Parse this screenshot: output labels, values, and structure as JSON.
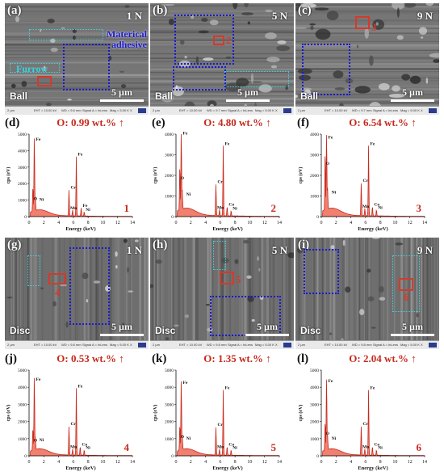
{
  "sem_panels": [
    {
      "id": "a",
      "label": "(a)",
      "load": "1 N",
      "sample": "Ball",
      "scale": "5 µm",
      "annotations": {
        "adhesive": "Materical adhesive",
        "furrow": "Furrow"
      },
      "spot": "",
      "infobar": [
        "2 µm",
        "EHT = 10.00 kV",
        "WD = 9.6 mm",
        "Signal A = InLens",
        "Mag = 5.00 K X"
      ]
    },
    {
      "id": "b",
      "label": "(b)",
      "load": "5 N",
      "sample": "Ball",
      "scale": "5 µm",
      "spot": "2",
      "infobar": [
        "2 µm",
        "EHT = 10.00 kV",
        "WD = 9.7 mm",
        "Signal A = InLens",
        "Mag = 5.00 K X"
      ]
    },
    {
      "id": "c",
      "label": "(c)",
      "load": "9 N",
      "sample": "Ball",
      "scale": "5 µm",
      "spot": "3",
      "infobar": [
        "2 µm",
        "EHT = 10.00 kV",
        "WD = 9.7 mm",
        "Signal A = InLens",
        "Mag = 5.00 K X"
      ]
    },
    {
      "id": "g",
      "label": "(g)",
      "load": "1 N",
      "sample": "Disc",
      "scale": "5 µm",
      "spot": "4",
      "infobar": [
        "2 µm",
        "EHT = 10.00 kV",
        "WD = 9.8 mm",
        "Signal A = InLens",
        "Mag = 5.00 K X"
      ]
    },
    {
      "id": "h",
      "label": "(h)",
      "load": "5 N",
      "sample": "Disc",
      "scale": "5 µm",
      "spot": "5",
      "infobar": [
        "2 µm",
        "EHT = 10.00 kV",
        "WD = 9.8 mm",
        "Signal A = InLens",
        "Mag = 5.00 K X"
      ]
    },
    {
      "id": "i",
      "label": "(i)",
      "load": "9 N",
      "sample": "Disc",
      "scale": "5 µm",
      "spot": "6",
      "infobar": [
        "2 µm",
        "EHT = 10.00 kV",
        "WD = 9.8 mm",
        "Signal A = InLens",
        "Mag = 5.00 K X"
      ]
    }
  ],
  "chart_data": [
    {
      "type": "line",
      "panel": "(d)",
      "title": "O: 0.99 wt.% ↑",
      "spectrum": "1",
      "xlabel": "Energy (keV)",
      "ylabel": "cps (eV)",
      "xlim": [
        0,
        14
      ],
      "ylim": [
        0,
        5000
      ],
      "xticks": [
        0,
        2,
        4,
        6,
        8,
        10,
        12,
        14
      ],
      "yticks": [
        0,
        1000,
        2000,
        3000,
        4000,
        5000
      ],
      "peaks": [
        {
          "label": "Fe",
          "x": 0.71,
          "y": 4500
        },
        {
          "label": "O",
          "x": 0.52,
          "y": 1500
        },
        {
          "label": "Ni",
          "x": 0.85,
          "y": 800
        },
        {
          "label": "Cr",
          "x": 5.41,
          "y": 1600
        },
        {
          "label": "Mn",
          "x": 5.9,
          "y": 350
        },
        {
          "label": "Fe",
          "x": 6.4,
          "y": 3600
        },
        {
          "label": "Fe",
          "x": 7.06,
          "y": 500
        },
        {
          "label": "Ni",
          "x": 7.47,
          "y": 250
        }
      ]
    },
    {
      "type": "line",
      "panel": "(e)",
      "title": "O: 4.80 wt.% ↑",
      "spectrum": "2",
      "xlabel": "Energy (keV)",
      "ylabel": "cps (eV)",
      "xlim": [
        0,
        14
      ],
      "ylim": [
        0,
        4000
      ],
      "xticks": [
        0,
        2,
        4,
        6,
        8,
        10,
        12,
        14
      ],
      "yticks": [
        0,
        1000,
        2000,
        3000,
        4000
      ],
      "peaks": [
        {
          "label": "Fe",
          "x": 0.71,
          "y": 3900
        },
        {
          "label": "O",
          "x": 0.52,
          "y": 2200
        },
        {
          "label": "Ni",
          "x": 0.85,
          "y": 900
        },
        {
          "label": "Cr",
          "x": 5.41,
          "y": 1550
        },
        {
          "label": "Mn",
          "x": 5.9,
          "y": 300
        },
        {
          "label": "Fe",
          "x": 6.4,
          "y": 3400
        },
        {
          "label": "Co",
          "x": 6.93,
          "y": 450
        },
        {
          "label": "Ni",
          "x": 7.47,
          "y": 250
        }
      ]
    },
    {
      "type": "line",
      "panel": "(f)",
      "title": "O: 6.54 wt.% ↑",
      "spectrum": "3",
      "xlabel": "Energy (keV)",
      "ylabel": "cps (eV)",
      "xlim": [
        0,
        14
      ],
      "ylim": [
        0,
        4000
      ],
      "xticks": [
        0,
        2,
        4,
        6,
        8,
        10,
        12,
        14
      ],
      "yticks": [
        0,
        1000,
        2000,
        3000,
        4000
      ],
      "peaks": [
        {
          "label": "Fe",
          "x": 0.71,
          "y": 3700
        },
        {
          "label": "O",
          "x": 0.52,
          "y": 2900
        },
        {
          "label": "Ni",
          "x": 0.85,
          "y": 1000
        },
        {
          "label": "Cr",
          "x": 5.41,
          "y": 1600
        },
        {
          "label": "Mn",
          "x": 5.9,
          "y": 350
        },
        {
          "label": "Fe",
          "x": 6.4,
          "y": 3400
        },
        {
          "label": "Co",
          "x": 6.93,
          "y": 450
        },
        {
          "label": "Ni",
          "x": 7.47,
          "y": 300
        }
      ]
    },
    {
      "type": "line",
      "panel": "(j)",
      "title": "O: 0.53 wt.% ↑",
      "spectrum": "4",
      "xlabel": "Energy (keV)",
      "ylabel": "cps (eV)",
      "xlim": [
        0,
        14
      ],
      "ylim": [
        0,
        5000
      ],
      "xticks": [
        0,
        2,
        4,
        6,
        8,
        10,
        12,
        14
      ],
      "yticks": [
        0,
        1000,
        2000,
        3000,
        4000,
        5000
      ],
      "peaks": [
        {
          "label": "Fe",
          "x": 0.71,
          "y": 4300
        },
        {
          "label": "O",
          "x": 0.52,
          "y": 1300
        },
        {
          "label": "Ni",
          "x": 0.85,
          "y": 700
        },
        {
          "label": "Cr",
          "x": 5.41,
          "y": 1700
        },
        {
          "label": "Mn",
          "x": 5.9,
          "y": 350
        },
        {
          "label": "Fe",
          "x": 6.4,
          "y": 3900
        },
        {
          "label": "Co",
          "x": 6.93,
          "y": 500
        },
        {
          "label": "Ni",
          "x": 7.47,
          "y": 300
        }
      ]
    },
    {
      "type": "line",
      "panel": "(k)",
      "title": "O: 1.35 wt.% ↑",
      "spectrum": "5",
      "xlabel": "Energy (keV)",
      "ylabel": "cps (eV)",
      "xlim": [
        0,
        14
      ],
      "ylim": [
        0,
        5000
      ],
      "xticks": [
        0,
        2,
        4,
        6,
        8,
        10,
        12,
        14
      ],
      "yticks": [
        0,
        1000,
        2000,
        3000,
        4000,
        5000
      ],
      "peaks": [
        {
          "label": "Fe",
          "x": 0.71,
          "y": 4100
        },
        {
          "label": "O",
          "x": 0.52,
          "y": 1500
        },
        {
          "label": "Ni",
          "x": 0.85,
          "y": 800
        },
        {
          "label": "Cr",
          "x": 5.41,
          "y": 1650
        },
        {
          "label": "Mn",
          "x": 5.9,
          "y": 350
        },
        {
          "label": "Fe",
          "x": 6.4,
          "y": 3800
        },
        {
          "label": "Co",
          "x": 6.93,
          "y": 500
        },
        {
          "label": "Ni",
          "x": 7.47,
          "y": 300
        }
      ]
    },
    {
      "type": "line",
      "panel": "(l)",
      "title": "O: 2.04 wt.% ↑",
      "spectrum": "6",
      "xlabel": "Energy (keV)",
      "ylabel": "cps (eV)",
      "xlim": [
        0,
        14
      ],
      "ylim": [
        0,
        5000
      ],
      "xticks": [
        0,
        2,
        4,
        6,
        8,
        10,
        12,
        14
      ],
      "yticks": [
        0,
        1000,
        2000,
        3000,
        4000,
        5000
      ],
      "peaks": [
        {
          "label": "Fe",
          "x": 0.71,
          "y": 4200
        },
        {
          "label": "O",
          "x": 0.52,
          "y": 1700
        },
        {
          "label": "Ni",
          "x": 0.85,
          "y": 800
        },
        {
          "label": "Cr",
          "x": 5.41,
          "y": 1700
        },
        {
          "label": "Mn",
          "x": 5.9,
          "y": 350
        },
        {
          "label": "Fe",
          "x": 6.4,
          "y": 3800
        },
        {
          "label": "Co",
          "x": 6.93,
          "y": 500
        },
        {
          "label": "Ni",
          "x": 7.47,
          "y": 300
        }
      ]
    }
  ],
  "colors": {
    "spectrum_fill": "#f08070",
    "spectrum_line": "#c8291c",
    "title": "#c8291c",
    "box_blue": "#1a1ad4",
    "box_cyan": "#39d3e0",
    "box_red": "#d43a2a"
  }
}
